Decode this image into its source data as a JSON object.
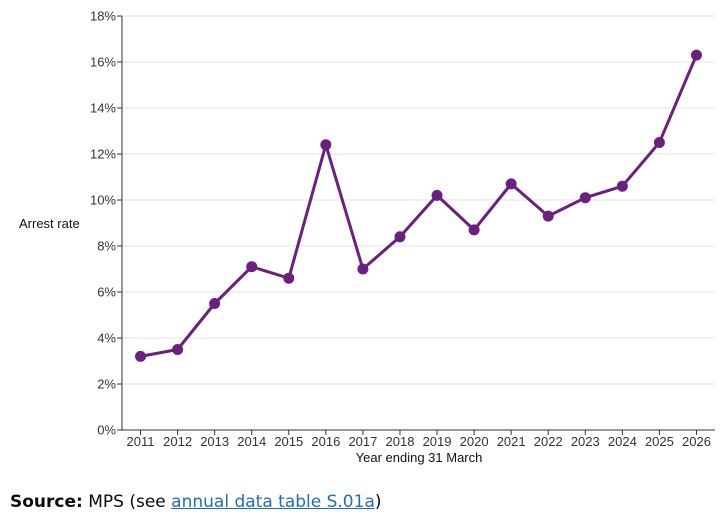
{
  "chart_data": {
    "type": "line",
    "categories": [
      "2011",
      "2012",
      "2013",
      "2014",
      "2015",
      "2016",
      "2017",
      "2018",
      "2019",
      "2020",
      "2021",
      "2022",
      "2023",
      "2024",
      "2025",
      "2026"
    ],
    "series": [
      {
        "values": [
          3.2,
          3.5,
          5.5,
          7.1,
          6.6,
          12.4,
          7.0,
          8.4,
          10.2,
          8.7,
          10.7,
          9.3,
          10.1,
          10.6,
          12.5,
          16.3
        ]
      }
    ],
    "title": "",
    "xlabel": "Year ending 31 March",
    "ylabel": "Arrest rate",
    "ylim": [
      0,
      18
    ],
    "yticks": [
      0,
      2,
      4,
      6,
      8,
      10,
      12,
      14,
      16,
      18
    ],
    "ytick_suffix": "%",
    "grid": true,
    "line_color": "#6b1f7e"
  },
  "source": {
    "label": "Source:",
    "text": "MPS (see",
    "link_text": "annual data table S.01a",
    "close": ")"
  }
}
